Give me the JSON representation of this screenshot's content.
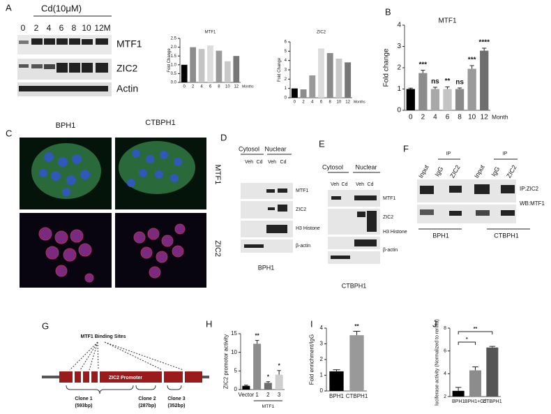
{
  "chart_data": [
    {
      "type": "bar",
      "title": "MTF1",
      "ylabel": "Fold Change",
      "xlabel": "Months",
      "categories": [
        "0",
        "2",
        "4",
        "6",
        "8",
        "10",
        "12"
      ],
      "values": [
        1.0,
        2.0,
        1.9,
        2.1,
        1.8,
        1.2,
        1.5
      ],
      "colors": [
        "#000000",
        "#8c8c8c",
        "#c4c4c4",
        "#dcdcdc",
        "#9a9a9a",
        "#c8c8c8",
        "#777777"
      ],
      "ylim": [
        0,
        2.5
      ],
      "yticks": [
        {
          "value": 0,
          "label": "0.0"
        },
        {
          "value": 0.5,
          "label": "0.5"
        },
        {
          "value": 1,
          "label": "1.0"
        },
        {
          "value": 1.5,
          "label": "1.5"
        },
        {
          "value": 2,
          "label": "2.0"
        },
        {
          "value": 2.5,
          "label": "2.5"
        }
      ]
    },
    {
      "type": "bar",
      "title": "ZIC2",
      "ylabel": "Fold Change",
      "xlabel": "Months",
      "categories": [
        "0",
        "2",
        "4",
        "6",
        "8",
        "10",
        "12"
      ],
      "values": [
        1.0,
        0.9,
        2.4,
        5.3,
        4.8,
        4.2,
        3.8
      ],
      "colors": [
        "#000000",
        "#8c8c8c",
        "#9a9a9a",
        "#dcdcdc",
        "#8a8a8a",
        "#c8c8c8",
        "#777777"
      ],
      "ylim": [
        0,
        6
      ],
      "yticks": [
        0,
        1,
        2,
        3,
        4,
        5,
        6
      ]
    },
    {
      "type": "bar",
      "title": "MTF1",
      "ylabel": "Fold change",
      "xlabel": "Month",
      "categories": [
        "0",
        "2",
        "4",
        "6",
        "8",
        "10",
        "12"
      ],
      "values": [
        1.0,
        1.75,
        1.0,
        1.0,
        1.0,
        1.95,
        2.8
      ],
      "errors": [
        0.04,
        0.13,
        0.08,
        0.1,
        0.05,
        0.15,
        0.12
      ],
      "annotations": [
        null,
        "***",
        "ns",
        "**",
        "ns",
        "***",
        "****"
      ],
      "colors": [
        "#000000",
        "#8c8c8c",
        "#a8a8a8",
        "#c4c4c4",
        "#8a8a8a",
        "#9a9a9a",
        "#6e6e6e"
      ],
      "ylim": [
        0,
        4
      ],
      "yticks": [
        0,
        1,
        2,
        3,
        4
      ]
    },
    {
      "type": "bar",
      "ylabel": "ZIC2 promotor activity",
      "group_label": "MTF1",
      "categories": [
        "Vector",
        "1",
        "2",
        "3"
      ],
      "values": [
        1.0,
        12.3,
        1.8,
        4.0
      ],
      "errors": [
        0.2,
        0.9,
        0.3,
        1.1
      ],
      "annotations": [
        null,
        "**",
        "*",
        "*"
      ],
      "colors": [
        "#000000",
        "#8c8c8c",
        "#6e6e6e",
        "#cfcfcf"
      ],
      "ylim": [
        0,
        15
      ],
      "yticks": [
        0,
        5,
        10,
        15
      ]
    },
    {
      "type": "bar",
      "ylabel": "Fold enrichment/IgG",
      "categories": [
        "BPH1",
        "CTBPH1"
      ],
      "values": [
        1.25,
        3.55
      ],
      "errors": [
        0.1,
        0.25
      ],
      "annotations": [
        null,
        "**"
      ],
      "colors": [
        "#000000",
        "#999999"
      ],
      "ylim": [
        0,
        4
      ],
      "yticks": [
        0,
        1,
        2,
        3,
        4
      ]
    },
    {
      "type": "bar",
      "ylabel": "luciferase activity (Normalized to renilla)",
      "categories": [
        "BPH1",
        "BPH1+Cd",
        "CTBPH1"
      ],
      "values": [
        2.5,
        4.3,
        6.3
      ],
      "errors": [
        0.3,
        0.3,
        0.1
      ],
      "brackets": [
        {
          "pair": [
            0,
            1
          ],
          "label": "*"
        },
        {
          "pair": [
            0,
            2
          ],
          "label": "**"
        }
      ],
      "colors": [
        "#000000",
        "#8c8c8c",
        "#555555"
      ],
      "ylim": [
        2,
        8
      ],
      "yticks": [
        2,
        4,
        6,
        8
      ]
    }
  ],
  "letters": [
    "A",
    "B",
    "C",
    "D",
    "E",
    "F",
    "G",
    "H",
    "I",
    "J"
  ],
  "panel_a": {
    "treatment": "Cd(10μM)",
    "lanes": [
      "0",
      "2",
      "4",
      "6",
      "8",
      "10",
      "12M"
    ],
    "blots": [
      "MTF1",
      "ZIC2",
      "Actin"
    ]
  },
  "panel_c": {
    "columns": [
      "BPH1",
      "CTBPH1"
    ],
    "rows": [
      "MTF1",
      "ZIC2"
    ]
  },
  "panel_d": {
    "fractions": [
      "Cytosol",
      "Nuclear"
    ],
    "lanes": [
      "Veh",
      "Cd",
      "Veh",
      "Cd"
    ],
    "blots": [
      "MTF1",
      "ZIC2",
      "H3 Histone",
      "β-actin"
    ],
    "cell_line": "BPH1"
  },
  "panel_e": {
    "fractions": [
      "Cytosol",
      "Nuclear"
    ],
    "lanes": [
      "Veh",
      "Cd",
      "Veh",
      "Cd"
    ],
    "blots": [
      "MTF1",
      "ZIC2",
      "H3 Histone",
      "β-actin"
    ],
    "cell_line": "CTBPH1"
  },
  "panel_f": {
    "lanes": [
      "Input",
      "IgG",
      "ZIC2",
      "Input",
      "IgG",
      "ZIC2"
    ],
    "ip": [
      "IP",
      "IP"
    ],
    "blots": [
      "IP:ZIC2",
      "WB:MTF1"
    ],
    "cell_lines": [
      "BPH1",
      "CTBPH1"
    ]
  },
  "panel_g": {
    "title": "MTF1 Binding Sites",
    "promoter": "ZIC2 Promoter",
    "clones": [
      {
        "name": "Clone 1",
        "size": "(593bp)"
      },
      {
        "name": "Clone 2",
        "size": "(287bp)"
      },
      {
        "name": "Clone 3",
        "size": "(352bp)"
      }
    ]
  }
}
